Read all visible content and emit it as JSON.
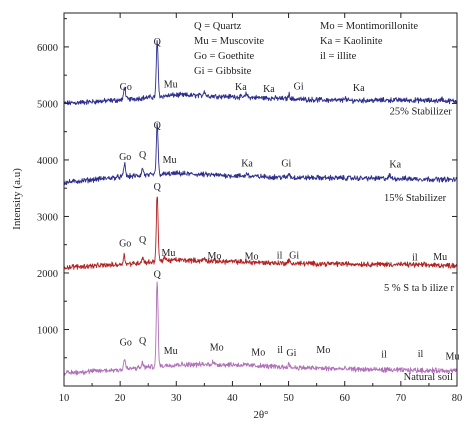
{
  "chart_data": {
    "type": "line",
    "xlabel": "2θ°",
    "ylabel": "Intensity (a.u)",
    "xlim": [
      10,
      80
    ],
    "ylim": [
      0,
      6600
    ],
    "xticks": [
      10,
      20,
      30,
      40,
      50,
      60,
      70,
      80
    ],
    "yticks": [
      1000,
      2000,
      3000,
      4000,
      5000,
      6000
    ],
    "grid": false,
    "legend_left": [
      "Q = Quartz",
      "Mu = Muscovite",
      "Go = Goethite",
      "Gi = Gibbsite"
    ],
    "legend_right": [
      "Mo = Montimorillonite",
      "Ka = Kaolinite",
      "il = illite"
    ],
    "series": [
      {
        "name": "25% Stabilizer",
        "color": "#2e2e8f",
        "baseline": [
          [
            10,
            5000
          ],
          [
            20,
            5060
          ],
          [
            30,
            5150
          ],
          [
            40,
            5120
          ],
          [
            50,
            5080
          ],
          [
            60,
            5050
          ],
          [
            70,
            5060
          ],
          [
            80,
            5040
          ]
        ],
        "peaks": [
          [
            20.8,
            220
          ],
          [
            26.6,
            1000
          ],
          [
            35.0,
            90
          ],
          [
            42.5,
            60
          ],
          [
            50.1,
            80
          ],
          [
            60.0,
            60
          ],
          [
            77.3,
            40
          ]
        ],
        "peak_labels": [
          {
            "text": "Go",
            "x": 21.0,
            "y": 5240
          },
          {
            "text": "Q",
            "x": 26.6,
            "y": 6030
          },
          {
            "text": "Mu",
            "x": 29.0,
            "y": 5280
          },
          {
            "text": "Ka",
            "x": 41.5,
            "y": 5240
          },
          {
            "text": "Ka",
            "x": 46.5,
            "y": 5200
          },
          {
            "text": "Gi",
            "x": 51.8,
            "y": 5250
          },
          {
            "text": "Ka",
            "x": 62.5,
            "y": 5220
          }
        ],
        "label": "25% Stabilizer",
        "label_at": [
          68,
          4800
        ]
      },
      {
        "name": "15% Stabilizer",
        "color": "#2e2e8f",
        "baseline": [
          [
            10,
            3600
          ],
          [
            20,
            3700
          ],
          [
            30,
            3760
          ],
          [
            40,
            3720
          ],
          [
            50,
            3690
          ],
          [
            60,
            3680
          ],
          [
            70,
            3670
          ],
          [
            80,
            3650
          ]
        ],
        "peaks": [
          [
            20.8,
            230
          ],
          [
            24.0,
            120
          ],
          [
            26.6,
            900
          ],
          [
            42.6,
            60
          ],
          [
            50.1,
            70
          ],
          [
            68.0,
            50
          ]
        ],
        "peak_labels": [
          {
            "text": "Go",
            "x": 20.9,
            "y": 4000
          },
          {
            "text": "Q",
            "x": 24.0,
            "y": 4030
          },
          {
            "text": "Q",
            "x": 26.6,
            "y": 4560
          },
          {
            "text": "Mu",
            "x": 28.8,
            "y": 3950
          },
          {
            "text": "Ka",
            "x": 42.6,
            "y": 3880
          },
          {
            "text": "Gi",
            "x": 49.6,
            "y": 3880
          },
          {
            "text": "Ka",
            "x": 69.0,
            "y": 3870
          }
        ],
        "label": "15% Stabilizer",
        "label_at": [
          67,
          3270
        ]
      },
      {
        "name": "5% Stabilizer",
        "color": "#b22222",
        "baseline": [
          [
            10,
            2100
          ],
          [
            20,
            2150
          ],
          [
            30,
            2230
          ],
          [
            40,
            2200
          ],
          [
            50,
            2170
          ],
          [
            60,
            2160
          ],
          [
            70,
            2150
          ],
          [
            80,
            2130
          ]
        ],
        "peaks": [
          [
            20.7,
            160
          ],
          [
            24.0,
            90
          ],
          [
            26.6,
            1180
          ],
          [
            28.0,
            80
          ],
          [
            35.0,
            40
          ],
          [
            50.0,
            50
          ]
        ],
        "peak_labels": [
          {
            "text": "Go",
            "x": 20.9,
            "y": 2470
          },
          {
            "text": "Q",
            "x": 24.0,
            "y": 2530
          },
          {
            "text": "Q",
            "x": 26.6,
            "y": 3470
          },
          {
            "text": "Mu",
            "x": 28.6,
            "y": 2300
          },
          {
            "text": "Mo",
            "x": 36.8,
            "y": 2250
          },
          {
            "text": "Mo",
            "x": 43.4,
            "y": 2240
          },
          {
            "text": "il",
            "x": 48.4,
            "y": 2260
          },
          {
            "text": "Gi",
            "x": 51.0,
            "y": 2260
          },
          {
            "text": "il",
            "x": 72.5,
            "y": 2220
          },
          {
            "text": "Mu",
            "x": 77.0,
            "y": 2230
          }
        ],
        "label": "5 % S ta b ilize r",
        "label_at": [
          67,
          1680
        ]
      },
      {
        "name": "Natural soil",
        "color": "#b071b8",
        "baseline": [
          [
            10,
            230
          ],
          [
            20,
            290
          ],
          [
            30,
            380
          ],
          [
            40,
            380
          ],
          [
            50,
            330
          ],
          [
            60,
            300
          ],
          [
            70,
            280
          ],
          [
            80,
            270
          ]
        ],
        "peaks": [
          [
            20.8,
            180
          ],
          [
            24.0,
            80
          ],
          [
            26.6,
            1500
          ],
          [
            36.5,
            60
          ],
          [
            50.0,
            60
          ]
        ],
        "peak_labels": [
          {
            "text": "Go",
            "x": 21.0,
            "y": 720
          },
          {
            "text": "Q",
            "x": 24.0,
            "y": 740
          },
          {
            "text": "Q",
            "x": 26.6,
            "y": 1920
          },
          {
            "text": "Mu",
            "x": 29.0,
            "y": 570
          },
          {
            "text": "Mo",
            "x": 37.2,
            "y": 630
          },
          {
            "text": "Mo",
            "x": 44.6,
            "y": 540
          },
          {
            "text": "il",
            "x": 48.5,
            "y": 580
          },
          {
            "text": "Gi",
            "x": 50.5,
            "y": 530
          },
          {
            "text": "Mo",
            "x": 56.2,
            "y": 580
          },
          {
            "text": "il",
            "x": 67.0,
            "y": 500
          },
          {
            "text": "il",
            "x": 73.5,
            "y": 510
          },
          {
            "text": "Mu",
            "x": 79.2,
            "y": 470
          }
        ],
        "label": "Natural soil",
        "label_at": [
          70.5,
          110
        ]
      }
    ]
  }
}
